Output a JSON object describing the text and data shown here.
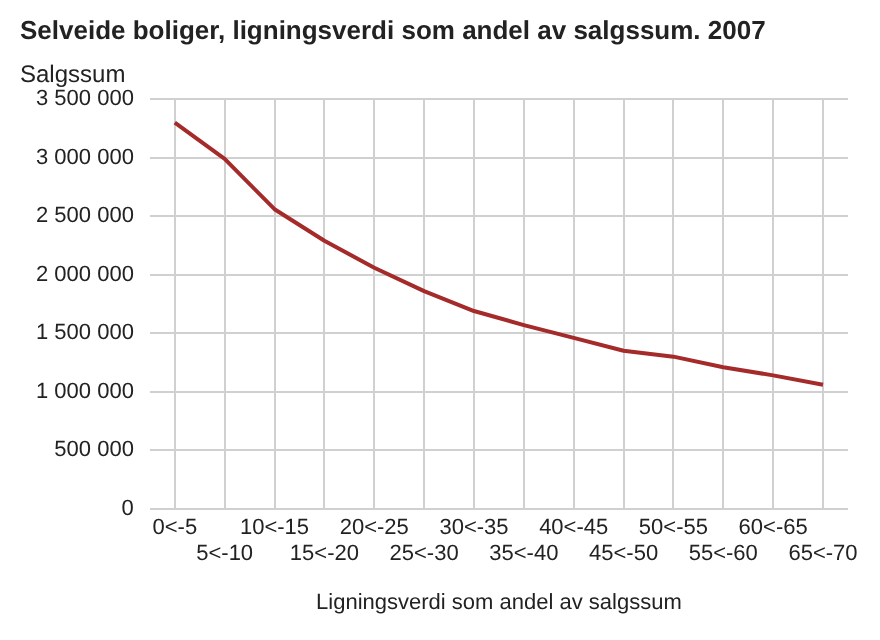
{
  "chart_data": {
    "type": "line",
    "title": "Selveide boliger, ligningsverdi som andel av salgssum. 2007",
    "ylabel": "Salgssum",
    "xlabel": "Ligningsverdi som andel av salgssum",
    "categories": [
      "0<-5",
      "5<-10",
      "10<-15",
      "15<-20",
      "20<-25",
      "25<-30",
      "30<-35",
      "35<-40",
      "40<-45",
      "45<-50",
      "50<-55",
      "55<-60",
      "60<-65",
      "65<-70"
    ],
    "series": [
      {
        "color": "#a52a2a",
        "values": [
          3300000,
          2990000,
          2560000,
          2290000,
          2060000,
          1860000,
          1690000,
          1570000,
          1460000,
          1350000,
          1300000,
          1210000,
          1140000,
          1060000
        ]
      }
    ],
    "ylim": [
      0,
      3500000
    ],
    "yticks": [
      0,
      500000,
      1000000,
      1500000,
      2000000,
      2500000,
      3000000,
      3500000
    ],
    "grid": true,
    "legend": false,
    "marker": "none",
    "line_style": "solid"
  }
}
